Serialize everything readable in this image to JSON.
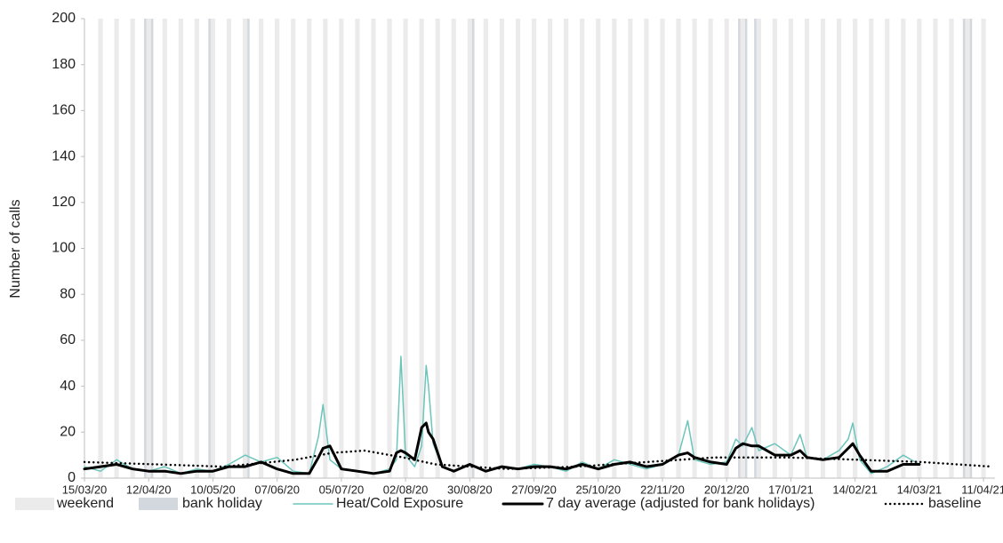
{
  "chart_data": {
    "type": "line",
    "y_label": "Number of calls",
    "x": [
      "15/03/20",
      "22/03/20",
      "29/03/20",
      "05/04/20",
      "12/04/20",
      "19/04/20",
      "26/04/20",
      "03/05/20",
      "10/05/20",
      "17/05/20",
      "24/05/20",
      "31/05/20",
      "07/06/20",
      "14/06/20",
      "21/06/20",
      "25/06/20",
      "27/06/20",
      "30/06/20",
      "05/07/20",
      "12/07/20",
      "19/07/20",
      "26/07/20",
      "29/07/20",
      "31/07/20",
      "02/08/20",
      "06/08/20",
      "09/08/20",
      "11/08/20",
      "12/08/20",
      "14/08/20",
      "18/08/20",
      "23/08/20",
      "30/08/20",
      "06/09/20",
      "13/09/20",
      "20/09/20",
      "27/09/20",
      "04/10/20",
      "11/10/20",
      "18/10/20",
      "25/10/20",
      "01/11/20",
      "08/11/20",
      "15/11/20",
      "22/11/20",
      "29/11/20",
      "03/12/20",
      "06/12/20",
      "13/12/20",
      "20/12/20",
      "24/12/20",
      "27/12/20",
      "31/12/20",
      "03/01/21",
      "10/01/21",
      "17/01/21",
      "21/01/21",
      "24/01/21",
      "31/01/21",
      "07/02/21",
      "11/02/21",
      "13/02/21",
      "16/02/21",
      "21/02/21",
      "28/02/21",
      "07/03/21",
      "14/03/21"
    ],
    "series": [
      {
        "name": "Heat/Cold Exposure",
        "color": "#6cc5bb",
        "width": 1.5,
        "values": [
          5,
          3,
          8,
          4,
          3,
          5,
          2,
          4,
          3,
          6,
          10,
          7,
          9,
          3,
          2,
          18,
          32,
          8,
          4,
          3,
          2,
          4,
          8,
          53,
          10,
          5,
          14,
          49,
          40,
          15,
          5,
          3,
          6,
          3,
          5,
          4,
          6,
          5,
          3,
          7,
          4,
          8,
          6,
          4,
          6,
          10,
          25,
          8,
          6,
          7,
          17,
          14,
          22,
          12,
          15,
          10,
          19,
          9,
          8,
          12,
          17,
          24,
          8,
          2,
          5,
          10,
          6
        ]
      },
      {
        "name": "7 day average (adjusted for bank holidays)",
        "color": "#000000",
        "width": 3,
        "values": [
          4,
          5,
          6,
          4,
          3,
          3,
          2,
          3,
          3,
          5,
          5,
          7,
          4,
          2,
          2,
          9,
          13,
          14,
          4,
          3,
          2,
          3,
          11,
          12,
          11,
          8,
          22,
          24,
          20,
          17,
          5,
          3,
          6,
          3,
          5,
          4,
          5,
          5,
          4,
          6,
          4,
          6,
          7,
          5,
          6,
          10,
          11,
          9,
          7,
          6,
          13,
          15,
          14,
          14,
          10,
          10,
          12,
          9,
          8,
          9,
          13,
          15,
          10,
          3,
          3,
          6,
          6
        ]
      },
      {
        "name": "baseline",
        "color": "#000000",
        "width": 2.5,
        "dotted": true,
        "x": [
          "15/03/20",
          "15/04/20",
          "15/05/20",
          "15/06/20",
          "01/07/20",
          "15/07/20",
          "01/08/20",
          "15/08/20",
          "15/09/20",
          "15/10/20",
          "15/11/20",
          "15/12/20",
          "15/01/21",
          "15/02/21",
          "15/03/21",
          "15/04/21"
        ],
        "values": [
          7,
          6,
          5,
          8,
          11,
          12,
          9,
          6,
          4,
          5,
          7,
          9,
          9,
          8,
          7,
          5
        ]
      }
    ],
    "xlim": [
      "15/03/20",
      "16/04/21"
    ],
    "xticks": [
      "15/03/20",
      "12/04/20",
      "10/05/20",
      "07/06/20",
      "05/07/20",
      "02/08/20",
      "30/08/20",
      "27/09/20",
      "25/10/20",
      "22/11/20",
      "20/12/20",
      "17/01/21",
      "14/02/21",
      "14/03/21",
      "11/04/21"
    ],
    "ylim": [
      0,
      200
    ],
    "yticks": [
      0,
      20,
      40,
      60,
      80,
      100,
      120,
      140,
      160,
      180,
      200
    ],
    "weekend": {
      "label": "weekend",
      "color": "#ebebeb"
    },
    "bank_holiday": {
      "label": "bank holiday",
      "color": "#d3d8de",
      "dates": [
        "10/04/20",
        "13/04/20",
        "08/05/20",
        "25/05/20",
        "31/08/20",
        "25/12/20",
        "28/12/20",
        "01/01/21",
        "02/04/21",
        "05/04/21"
      ]
    }
  }
}
